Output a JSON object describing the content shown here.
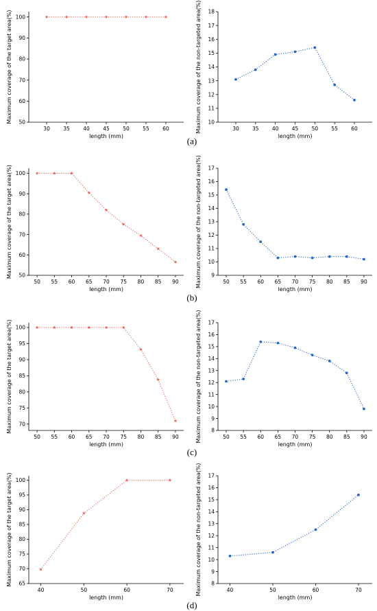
{
  "colors": {
    "target": "#e8675a",
    "non_target": "#2866c8",
    "axis": "#000000"
  },
  "panel_labels": [
    "(a)",
    "(b)",
    "(c)",
    "(d)"
  ],
  "chart_data": [
    {
      "type": "line",
      "row": 0,
      "col": 0,
      "x": [
        30,
        35,
        40,
        45,
        50,
        55,
        60
      ],
      "y": [
        100,
        100,
        100,
        100,
        100,
        100,
        100
      ],
      "xticks": [
        30,
        35,
        40,
        45,
        50,
        55,
        60
      ],
      "xlim": [
        25.5,
        64.5
      ],
      "yticks": [
        50,
        60,
        70,
        80,
        90,
        100
      ],
      "ylim": [
        50,
        102.5
      ],
      "xlabel": "length (mm)",
      "ylabel": "Maximum coverage of the target area(%)",
      "color_key": "target",
      "marker": "star"
    },
    {
      "type": "line",
      "row": 0,
      "col": 1,
      "x": [
        30,
        35,
        40,
        45,
        50,
        55,
        60
      ],
      "y": [
        13.1,
        13.8,
        14.9,
        15.1,
        15.4,
        12.7,
        11.6
      ],
      "xticks": [
        30,
        35,
        40,
        45,
        50,
        55,
        60
      ],
      "xlim": [
        25.5,
        64.5
      ],
      "yticks": [
        10,
        11,
        12,
        13,
        14,
        15,
        16,
        17,
        18
      ],
      "ylim": [
        10,
        18
      ],
      "xlabel": "length (mm)",
      "ylabel": "Maximum coverage of the non-targeted area(%)",
      "color_key": "non_target",
      "marker": "dot"
    },
    {
      "type": "line",
      "row": 1,
      "col": 0,
      "x": [
        50,
        55,
        60,
        65,
        70,
        75,
        80,
        85,
        90
      ],
      "y": [
        100,
        100,
        100,
        90.5,
        82,
        75,
        69.5,
        63,
        56.5
      ],
      "xticks": [
        50,
        55,
        60,
        65,
        70,
        75,
        80,
        85,
        90
      ],
      "xlim": [
        47.6,
        92.4
      ],
      "yticks": [
        50,
        60,
        70,
        80,
        90,
        100
      ],
      "ylim": [
        50,
        102.5
      ],
      "xlabel": "length (mm)",
      "ylabel": "Maximum coverage of the target area(%)",
      "color_key": "target",
      "marker": "star"
    },
    {
      "type": "line",
      "row": 1,
      "col": 1,
      "x": [
        50,
        55,
        60,
        65,
        70,
        75,
        80,
        85,
        90
      ],
      "y": [
        15.4,
        12.8,
        11.5,
        10.3,
        10.4,
        10.3,
        10.4,
        10.4,
        10.2
      ],
      "xticks": [
        50,
        55,
        60,
        65,
        70,
        75,
        80,
        85,
        90
      ],
      "xlim": [
        47.6,
        92.4
      ],
      "yticks": [
        9,
        10,
        11,
        12,
        13,
        14,
        15,
        16,
        17
      ],
      "ylim": [
        9,
        17
      ],
      "xlabel": "length (mm)",
      "ylabel": "Maximum coverage of the non-targeted area(%)",
      "color_key": "non_target",
      "marker": "dot"
    },
    {
      "type": "line",
      "row": 2,
      "col": 0,
      "x": [
        50,
        55,
        60,
        65,
        70,
        75,
        80,
        85,
        90
      ],
      "y": [
        100,
        100,
        100,
        100,
        100,
        100,
        93.2,
        83.8,
        71
      ],
      "xticks": [
        50,
        55,
        60,
        65,
        70,
        75,
        80,
        85,
        90
      ],
      "xlim": [
        47.6,
        92.4
      ],
      "yticks": [
        70,
        75,
        80,
        85,
        90,
        95,
        100
      ],
      "ylim": [
        68,
        101.5
      ],
      "xlabel": "length (mm)",
      "ylabel": "Maximum coverage of the target area(%)",
      "color_key": "target",
      "marker": "star"
    },
    {
      "type": "line",
      "row": 2,
      "col": 1,
      "x": [
        50,
        55,
        60,
        65,
        70,
        75,
        80,
        85,
        90
      ],
      "y": [
        12.1,
        12.3,
        15.4,
        15.3,
        14.9,
        14.3,
        13.8,
        12.8,
        9.8
      ],
      "xticks": [
        50,
        55,
        60,
        65,
        70,
        75,
        80,
        85,
        90
      ],
      "xlim": [
        47.6,
        92.4
      ],
      "yticks": [
        8,
        9,
        10,
        11,
        12,
        13,
        14,
        15,
        16,
        17
      ],
      "ylim": [
        8,
        17
      ],
      "xlabel": "length (mm)",
      "ylabel": "Maximum coverage of the non-targeted area(%)",
      "color_key": "non_target",
      "marker": "dot"
    },
    {
      "type": "line",
      "row": 3,
      "col": 0,
      "x": [
        40,
        50,
        60,
        70
      ],
      "y": [
        69.8,
        88.8,
        100,
        100
      ],
      "xticks": [
        40,
        50,
        60,
        70
      ],
      "xlim": [
        37.2,
        73.2
      ],
      "yticks": [
        65,
        70,
        75,
        80,
        85,
        90,
        95,
        100
      ],
      "ylim": [
        65,
        101.5
      ],
      "xlabel": "length (mm)",
      "ylabel": "Maximum coverage of the target area(%)",
      "color_key": "target",
      "marker": "star"
    },
    {
      "type": "line",
      "row": 3,
      "col": 1,
      "x": [
        40,
        50,
        60,
        70
      ],
      "y": [
        10.3,
        10.6,
        12.5,
        15.4
      ],
      "xticks": [
        40,
        50,
        60,
        70
      ],
      "xlim": [
        37.2,
        73.2
      ],
      "yticks": [
        8,
        9,
        10,
        11,
        12,
        13,
        14,
        15,
        16,
        17
      ],
      "ylim": [
        8,
        17
      ],
      "xlabel": "length (mm)",
      "ylabel": "Maximum coverage of the non-targeted area(%)",
      "color_key": "non_target",
      "marker": "dot"
    }
  ]
}
